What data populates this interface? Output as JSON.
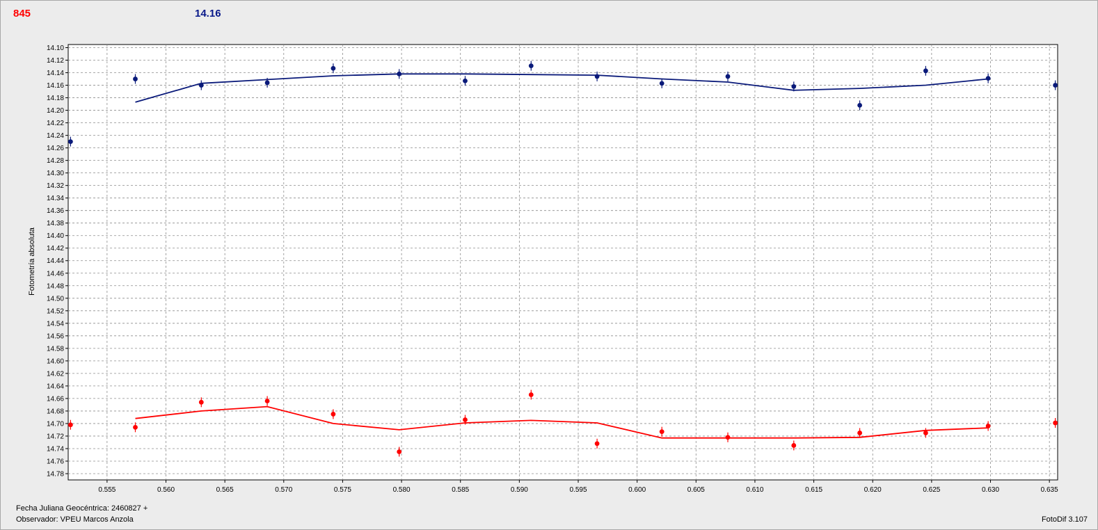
{
  "header": {
    "left_label": "845",
    "right_label": "14.16",
    "left_color": "#ff0000",
    "right_color": "#0a1a8a"
  },
  "footer": {
    "julian_date": "Fecha Juliana Geocéntrica: 2460827 +",
    "observer": "Observador: VPEU Marcos Anzola",
    "software": "FotoDif 3.107"
  },
  "chart_data": {
    "type": "scatter",
    "ylabel": "Fotometría absoluta",
    "xlabel": "",
    "xlim": [
      0.5517,
      0.6357
    ],
    "ylim": [
      14.79,
      14.095
    ],
    "y_inverted": true,
    "grid": true,
    "xticks": [
      0.555,
      0.56,
      0.565,
      0.57,
      0.575,
      0.58,
      0.585,
      0.59,
      0.595,
      0.6,
      0.605,
      0.61,
      0.615,
      0.62,
      0.625,
      0.63,
      0.635
    ],
    "xtick_labels": [
      "0.555",
      "0.560",
      "0.565",
      "0.570",
      "0.575",
      "0.580",
      "0.585",
      "0.590",
      "0.595",
      "0.600",
      "0.605",
      "0.610",
      "0.615",
      "0.620",
      "0.625",
      "0.630",
      "0.635"
    ],
    "yticks": [
      14.1,
      14.12,
      14.14,
      14.16,
      14.18,
      14.2,
      14.22,
      14.24,
      14.26,
      14.28,
      14.3,
      14.32,
      14.34,
      14.36,
      14.38,
      14.4,
      14.42,
      14.44,
      14.46,
      14.48,
      14.5,
      14.52,
      14.54,
      14.56,
      14.58,
      14.6,
      14.62,
      14.64,
      14.66,
      14.68,
      14.7,
      14.72,
      14.74,
      14.76,
      14.78
    ],
    "ytick_labels": [
      "14.10",
      "14.12",
      "14.14",
      "14.16",
      "14.18",
      "14.20",
      "14.22",
      "14.24",
      "14.26",
      "14.28",
      "14.30",
      "14.32",
      "14.34",
      "14.36",
      "14.38",
      "14.40",
      "14.42",
      "14.44",
      "14.46",
      "14.48",
      "14.50",
      "14.52",
      "14.54",
      "14.56",
      "14.58",
      "14.60",
      "14.62",
      "14.64",
      "14.66",
      "14.68",
      "14.70",
      "14.72",
      "14.74",
      "14.76",
      "14.78"
    ],
    "series": [
      {
        "color": "#0a1a7a",
        "points": [
          {
            "x": 0.5519,
            "y": 14.25
          },
          {
            "x": 0.5574,
            "y": 14.15
          },
          {
            "x": 0.563,
            "y": 14.16
          },
          {
            "x": 0.5686,
            "y": 14.156
          },
          {
            "x": 0.5742,
            "y": 14.133
          },
          {
            "x": 0.5798,
            "y": 14.142
          },
          {
            "x": 0.5854,
            "y": 14.153
          },
          {
            "x": 0.591,
            "y": 14.129
          },
          {
            "x": 0.5966,
            "y": 14.146
          },
          {
            "x": 0.6021,
            "y": 14.157
          },
          {
            "x": 0.6077,
            "y": 14.146
          },
          {
            "x": 0.6133,
            "y": 14.162
          },
          {
            "x": 0.6189,
            "y": 14.192
          },
          {
            "x": 0.6245,
            "y": 14.137
          },
          {
            "x": 0.6298,
            "y": 14.149
          },
          {
            "x": 0.6355,
            "y": 14.16
          }
        ],
        "trend": [
          {
            "x": 0.5574,
            "y": 14.187
          },
          {
            "x": 0.563,
            "y": 14.157
          },
          {
            "x": 0.5686,
            "y": 14.151
          },
          {
            "x": 0.5742,
            "y": 14.145
          },
          {
            "x": 0.5798,
            "y": 14.142
          },
          {
            "x": 0.5854,
            "y": 14.142
          },
          {
            "x": 0.591,
            "y": 14.143
          },
          {
            "x": 0.5966,
            "y": 14.144
          },
          {
            "x": 0.6021,
            "y": 14.15
          },
          {
            "x": 0.6077,
            "y": 14.155
          },
          {
            "x": 0.6133,
            "y": 14.168
          },
          {
            "x": 0.6189,
            "y": 14.165
          },
          {
            "x": 0.6245,
            "y": 14.16
          },
          {
            "x": 0.6298,
            "y": 14.15
          }
        ]
      },
      {
        "color": "#ff0000",
        "points": [
          {
            "x": 0.5519,
            "y": 14.702
          },
          {
            "x": 0.5574,
            "y": 14.706
          },
          {
            "x": 0.563,
            "y": 14.666
          },
          {
            "x": 0.5686,
            "y": 14.664
          },
          {
            "x": 0.5742,
            "y": 14.685
          },
          {
            "x": 0.5798,
            "y": 14.745
          },
          {
            "x": 0.5854,
            "y": 14.694
          },
          {
            "x": 0.591,
            "y": 14.654
          },
          {
            "x": 0.5966,
            "y": 14.732
          },
          {
            "x": 0.6021,
            "y": 14.713
          },
          {
            "x": 0.6077,
            "y": 14.722
          },
          {
            "x": 0.6133,
            "y": 14.735
          },
          {
            "x": 0.6189,
            "y": 14.715
          },
          {
            "x": 0.6245,
            "y": 14.715
          },
          {
            "x": 0.6298,
            "y": 14.704
          },
          {
            "x": 0.6355,
            "y": 14.699
          }
        ],
        "trend": [
          {
            "x": 0.5574,
            "y": 14.692
          },
          {
            "x": 0.563,
            "y": 14.68
          },
          {
            "x": 0.5686,
            "y": 14.673
          },
          {
            "x": 0.5742,
            "y": 14.7
          },
          {
            "x": 0.5798,
            "y": 14.71
          },
          {
            "x": 0.5854,
            "y": 14.699
          },
          {
            "x": 0.591,
            "y": 14.695
          },
          {
            "x": 0.5966,
            "y": 14.699
          },
          {
            "x": 0.6021,
            "y": 14.723
          },
          {
            "x": 0.6077,
            "y": 14.723
          },
          {
            "x": 0.6133,
            "y": 14.723
          },
          {
            "x": 0.6189,
            "y": 14.722
          },
          {
            "x": 0.6245,
            "y": 14.711
          },
          {
            "x": 0.6298,
            "y": 14.707
          }
        ]
      }
    ]
  }
}
